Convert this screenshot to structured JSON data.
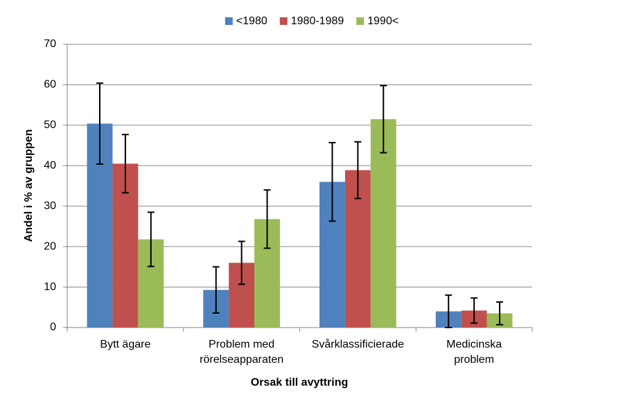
{
  "chart_data": {
    "type": "bar",
    "x_label": "Orsak till avyttring",
    "y_label": "Andel i % av gruppen",
    "categories": [
      "Bytt ägare",
      "Problem med rörelseapparaten",
      "Svårklassificierade",
      "Medicinska problem"
    ],
    "series": [
      {
        "name": "<1980",
        "color": "#4f81bd",
        "values": [
          50.4,
          9.3,
          36.0,
          4.0
        ],
        "errors": [
          10.0,
          5.7,
          9.7,
          4.0
        ]
      },
      {
        "name": "1980-1989",
        "color": "#c0504d",
        "values": [
          40.5,
          16.0,
          38.9,
          4.2
        ],
        "errors": [
          7.2,
          5.3,
          7.0,
          3.1
        ]
      },
      {
        "name": "1990<",
        "color": "#9bbb59",
        "values": [
          21.8,
          26.8,
          51.5,
          3.5
        ],
        "errors": [
          6.7,
          7.2,
          8.3,
          2.8
        ]
      }
    ],
    "ylim": [
      0,
      70
    ],
    "yticks": [
      0,
      10,
      20,
      30,
      40,
      50,
      60,
      70
    ],
    "grid": true,
    "legend": "top"
  }
}
